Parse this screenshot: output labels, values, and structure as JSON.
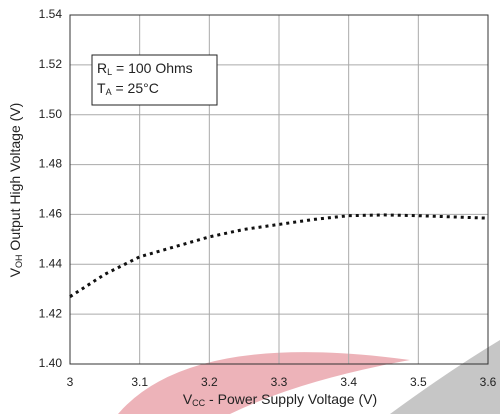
{
  "chart_data": {
    "type": "line",
    "x": [
      3.0,
      3.05,
      3.1,
      3.15,
      3.2,
      3.25,
      3.3,
      3.35,
      3.4,
      3.45,
      3.5,
      3.55,
      3.6
    ],
    "series": [
      {
        "color": "#111111",
        "values": [
          1.427,
          1.436,
          1.443,
          1.447,
          1.451,
          1.454,
          1.456,
          1.458,
          1.4595,
          1.4598,
          1.4595,
          1.459,
          1.4585
        ]
      }
    ],
    "xlim": [
      3.0,
      3.6
    ],
    "xticks": [
      3,
      3.1,
      3.2,
      3.3,
      3.4,
      3.5,
      3.6
    ],
    "ylim": [
      1.4,
      1.54
    ],
    "yticks": [
      {
        "value": 1.4,
        "label": "1.40"
      },
      1.42,
      1.44,
      1.46,
      1.48,
      {
        "value": 1.5,
        "label": "1.50"
      },
      1.52,
      1.54
    ],
    "grid": true,
    "x_label": {
      "main": "V",
      "sub": "CC",
      "rest": " - Power Supply Voltage (V)"
    },
    "y_label": {
      "main": "V",
      "sub": "OH",
      "rest": " Output High Voltage (V)"
    },
    "annotation": [
      {
        "main": "R",
        "sub": "L",
        "rest": " = 100 Ohms"
      },
      {
        "main": "T",
        "sub": "A",
        "rest": " = 25°C"
      }
    ]
  }
}
